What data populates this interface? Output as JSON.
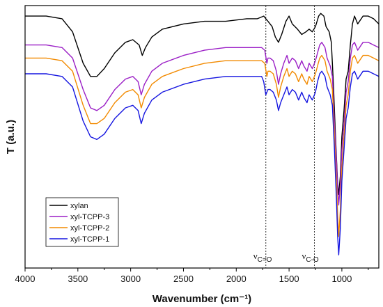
{
  "chart_data": {
    "type": "line",
    "xlabel": "Wavenumber (cm⁻¹)",
    "ylabel": "T (a.u.)",
    "xlim": [
      4000,
      650
    ],
    "x_inverted": true,
    "x_ticks": [
      4000,
      3500,
      3000,
      2500,
      2000,
      1500,
      1000
    ],
    "y_ticks_shown": false,
    "grid": false,
    "legend_position": "bottom-left",
    "reference_lines": [
      {
        "x": 1720,
        "label": "νC=O",
        "style": "dotted"
      },
      {
        "x": 1260,
        "label": "νC-O",
        "style": "dotted"
      }
    ],
    "annotations": [
      {
        "base": "ν",
        "sub": "C=O"
      },
      {
        "base": "ν",
        "sub": "C-O"
      }
    ],
    "series": [
      {
        "name": "xylan",
        "color": "#000000",
        "points": [
          [
            4000,
            96
          ],
          [
            3800,
            96
          ],
          [
            3650,
            95
          ],
          [
            3550,
            90
          ],
          [
            3450,
            78
          ],
          [
            3380,
            73
          ],
          [
            3320,
            73
          ],
          [
            3250,
            76
          ],
          [
            3150,
            82
          ],
          [
            3050,
            86
          ],
          [
            2980,
            87
          ],
          [
            2920,
            85
          ],
          [
            2890,
            81
          ],
          [
            2860,
            84
          ],
          [
            2800,
            88
          ],
          [
            2700,
            91
          ],
          [
            2500,
            93
          ],
          [
            2300,
            94
          ],
          [
            2100,
            94
          ],
          [
            1900,
            95
          ],
          [
            1800,
            95
          ],
          [
            1740,
            96
          ],
          [
            1700,
            94
          ],
          [
            1660,
            92
          ],
          [
            1630,
            88
          ],
          [
            1600,
            86
          ],
          [
            1570,
            89
          ],
          [
            1530,
            94
          ],
          [
            1500,
            96
          ],
          [
            1470,
            93
          ],
          [
            1420,
            91
          ],
          [
            1380,
            89
          ],
          [
            1340,
            90
          ],
          [
            1310,
            91
          ],
          [
            1280,
            90
          ],
          [
            1250,
            92
          ],
          [
            1220,
            96
          ],
          [
            1200,
            97
          ],
          [
            1170,
            96
          ],
          [
            1150,
            92
          ],
          [
            1120,
            90
          ],
          [
            1100,
            86
          ],
          [
            1080,
            70
          ],
          [
            1060,
            50
          ],
          [
            1040,
            32
          ],
          [
            1030,
            28
          ],
          [
            1015,
            35
          ],
          [
            1000,
            50
          ],
          [
            980,
            60
          ],
          [
            960,
            72
          ],
          [
            940,
            75
          ],
          [
            920,
            85
          ],
          [
            900,
            93
          ],
          [
            880,
            96
          ],
          [
            850,
            93
          ],
          [
            800,
            96
          ],
          [
            750,
            96
          ],
          [
            700,
            95
          ],
          [
            650,
            93
          ]
        ]
      },
      {
        "name": "xyl-TCPP-3",
        "color": "#9B1FC6",
        "points": [
          [
            4000,
            85
          ],
          [
            3800,
            85
          ],
          [
            3650,
            84
          ],
          [
            3550,
            80
          ],
          [
            3450,
            68
          ],
          [
            3380,
            61
          ],
          [
            3320,
            60
          ],
          [
            3250,
            62
          ],
          [
            3150,
            68
          ],
          [
            3050,
            72
          ],
          [
            2980,
            73
          ],
          [
            2930,
            71
          ],
          [
            2900,
            66
          ],
          [
            2870,
            70
          ],
          [
            2800,
            75
          ],
          [
            2700,
            78
          ],
          [
            2500,
            81
          ],
          [
            2300,
            83
          ],
          [
            2100,
            84
          ],
          [
            1900,
            84
          ],
          [
            1800,
            84
          ],
          [
            1760,
            84
          ],
          [
            1730,
            83
          ],
          [
            1710,
            78
          ],
          [
            1700,
            80
          ],
          [
            1680,
            80
          ],
          [
            1650,
            79
          ],
          [
            1620,
            75
          ],
          [
            1600,
            70
          ],
          [
            1580,
            74
          ],
          [
            1550,
            78
          ],
          [
            1520,
            81
          ],
          [
            1500,
            78
          ],
          [
            1470,
            80
          ],
          [
            1440,
            79
          ],
          [
            1410,
            76
          ],
          [
            1380,
            79
          ],
          [
            1360,
            77
          ],
          [
            1330,
            75
          ],
          [
            1310,
            78
          ],
          [
            1280,
            76
          ],
          [
            1250,
            79
          ],
          [
            1230,
            82
          ],
          [
            1210,
            85
          ],
          [
            1190,
            86
          ],
          [
            1160,
            84
          ],
          [
            1140,
            80
          ],
          [
            1110,
            77
          ],
          [
            1090,
            73
          ],
          [
            1070,
            55
          ],
          [
            1050,
            40
          ],
          [
            1040,
            30
          ],
          [
            1030,
            24
          ],
          [
            1015,
            32
          ],
          [
            1000,
            45
          ],
          [
            980,
            55
          ],
          [
            960,
            67
          ],
          [
            940,
            71
          ],
          [
            920,
            80
          ],
          [
            900,
            85
          ],
          [
            880,
            86
          ],
          [
            850,
            83
          ],
          [
            800,
            86
          ],
          [
            750,
            86
          ],
          [
            700,
            85
          ],
          [
            650,
            84
          ]
        ]
      },
      {
        "name": "xyl-TCPP-2",
        "color": "#F28A00",
        "points": [
          [
            4000,
            80
          ],
          [
            3800,
            80
          ],
          [
            3650,
            79
          ],
          [
            3550,
            75
          ],
          [
            3450,
            62
          ],
          [
            3380,
            55
          ],
          [
            3320,
            55
          ],
          [
            3250,
            57
          ],
          [
            3150,
            63
          ],
          [
            3050,
            67
          ],
          [
            2980,
            68
          ],
          [
            2930,
            66
          ],
          [
            2900,
            61
          ],
          [
            2870,
            65
          ],
          [
            2800,
            70
          ],
          [
            2700,
            73
          ],
          [
            2500,
            76
          ],
          [
            2300,
            78
          ],
          [
            2100,
            79
          ],
          [
            1900,
            79
          ],
          [
            1800,
            79
          ],
          [
            1760,
            79
          ],
          [
            1730,
            78
          ],
          [
            1710,
            73
          ],
          [
            1700,
            75
          ],
          [
            1680,
            75
          ],
          [
            1650,
            74
          ],
          [
            1620,
            70
          ],
          [
            1600,
            65
          ],
          [
            1580,
            69
          ],
          [
            1550,
            73
          ],
          [
            1520,
            76
          ],
          [
            1500,
            73
          ],
          [
            1470,
            75
          ],
          [
            1440,
            74
          ],
          [
            1410,
            71
          ],
          [
            1380,
            74
          ],
          [
            1360,
            72
          ],
          [
            1330,
            70
          ],
          [
            1310,
            73
          ],
          [
            1280,
            71
          ],
          [
            1250,
            74
          ],
          [
            1230,
            77
          ],
          [
            1210,
            80
          ],
          [
            1190,
            81
          ],
          [
            1160,
            79
          ],
          [
            1140,
            75
          ],
          [
            1110,
            72
          ],
          [
            1090,
            68
          ],
          [
            1070,
            50
          ],
          [
            1050,
            32
          ],
          [
            1040,
            20
          ],
          [
            1030,
            12
          ],
          [
            1015,
            22
          ],
          [
            1000,
            38
          ],
          [
            980,
            50
          ],
          [
            960,
            62
          ],
          [
            940,
            66
          ],
          [
            920,
            75
          ],
          [
            900,
            80
          ],
          [
            880,
            81
          ],
          [
            850,
            78
          ],
          [
            800,
            81
          ],
          [
            750,
            81
          ],
          [
            700,
            80
          ],
          [
            650,
            79
          ]
        ]
      },
      {
        "name": "xyl-TCPP-1",
        "color": "#1515E0",
        "points": [
          [
            4000,
            74
          ],
          [
            3800,
            74
          ],
          [
            3650,
            73
          ],
          [
            3550,
            69
          ],
          [
            3450,
            56
          ],
          [
            3380,
            50
          ],
          [
            3320,
            49
          ],
          [
            3250,
            51
          ],
          [
            3150,
            57
          ],
          [
            3050,
            61
          ],
          [
            2980,
            62
          ],
          [
            2930,
            60
          ],
          [
            2900,
            55
          ],
          [
            2870,
            59
          ],
          [
            2800,
            64
          ],
          [
            2700,
            67
          ],
          [
            2500,
            70
          ],
          [
            2300,
            72
          ],
          [
            2100,
            73
          ],
          [
            1900,
            73
          ],
          [
            1800,
            73
          ],
          [
            1760,
            73
          ],
          [
            1740,
            71
          ],
          [
            1720,
            66
          ],
          [
            1700,
            68
          ],
          [
            1680,
            68
          ],
          [
            1650,
            67
          ],
          [
            1620,
            64
          ],
          [
            1600,
            60
          ],
          [
            1580,
            63
          ],
          [
            1550,
            66
          ],
          [
            1520,
            69
          ],
          [
            1500,
            66
          ],
          [
            1470,
            68
          ],
          [
            1440,
            67
          ],
          [
            1410,
            64
          ],
          [
            1380,
            67
          ],
          [
            1360,
            65
          ],
          [
            1330,
            63
          ],
          [
            1310,
            66
          ],
          [
            1280,
            64
          ],
          [
            1250,
            67
          ],
          [
            1230,
            71
          ],
          [
            1210,
            74
          ],
          [
            1190,
            75
          ],
          [
            1160,
            73
          ],
          [
            1140,
            69
          ],
          [
            1110,
            66
          ],
          [
            1090,
            62
          ],
          [
            1070,
            45
          ],
          [
            1050,
            25
          ],
          [
            1040,
            12
          ],
          [
            1030,
            5
          ],
          [
            1015,
            15
          ],
          [
            1000,
            33
          ],
          [
            980,
            45
          ],
          [
            960,
            57
          ],
          [
            940,
            61
          ],
          [
            920,
            69
          ],
          [
            900,
            74
          ],
          [
            880,
            75
          ],
          [
            850,
            72
          ],
          [
            800,
            75
          ],
          [
            750,
            75
          ],
          [
            700,
            74
          ],
          [
            650,
            73
          ]
        ]
      }
    ]
  }
}
